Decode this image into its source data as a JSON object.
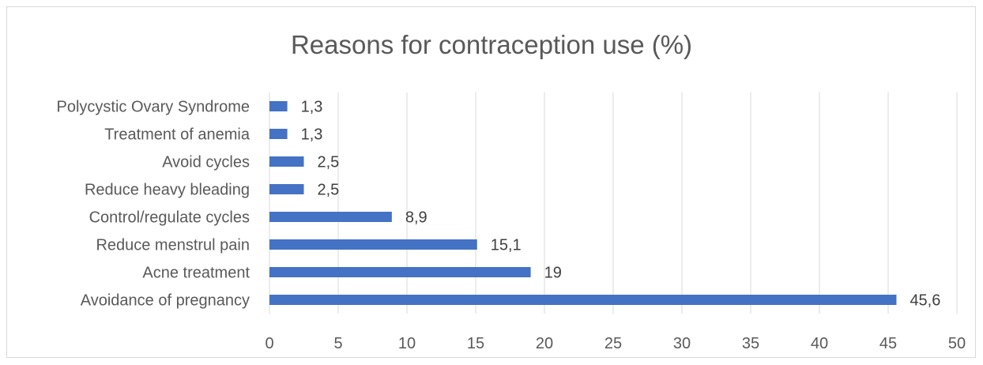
{
  "chart_data": {
    "type": "bar",
    "orientation": "horizontal",
    "title": "Reasons for contraception use (%)",
    "xlabel": "",
    "ylabel": "",
    "categories": [
      "Polycystic Ovary Syndrome",
      "Treatment of anemia",
      "Avoid cycles",
      "Reduce heavy bleading",
      "Control/regulate cycles",
      "Reduce menstrul pain",
      "Acne treatment",
      "Avoidance of pregnancy"
    ],
    "values": [
      1.3,
      1.3,
      2.5,
      2.5,
      8.9,
      15.1,
      19,
      45.6
    ],
    "value_labels": [
      "1,3",
      "1,3",
      "2,5",
      "2,5",
      "8,9",
      "15,1",
      "19",
      "45,6"
    ],
    "xlim": [
      0,
      50
    ],
    "xticks": [
      0,
      5,
      10,
      15,
      20,
      25,
      30,
      35,
      40,
      45,
      50
    ],
    "grid": "vertical",
    "legend": "none",
    "bar_color": "#4472c4",
    "grid_color": "#d9d9d9"
  }
}
